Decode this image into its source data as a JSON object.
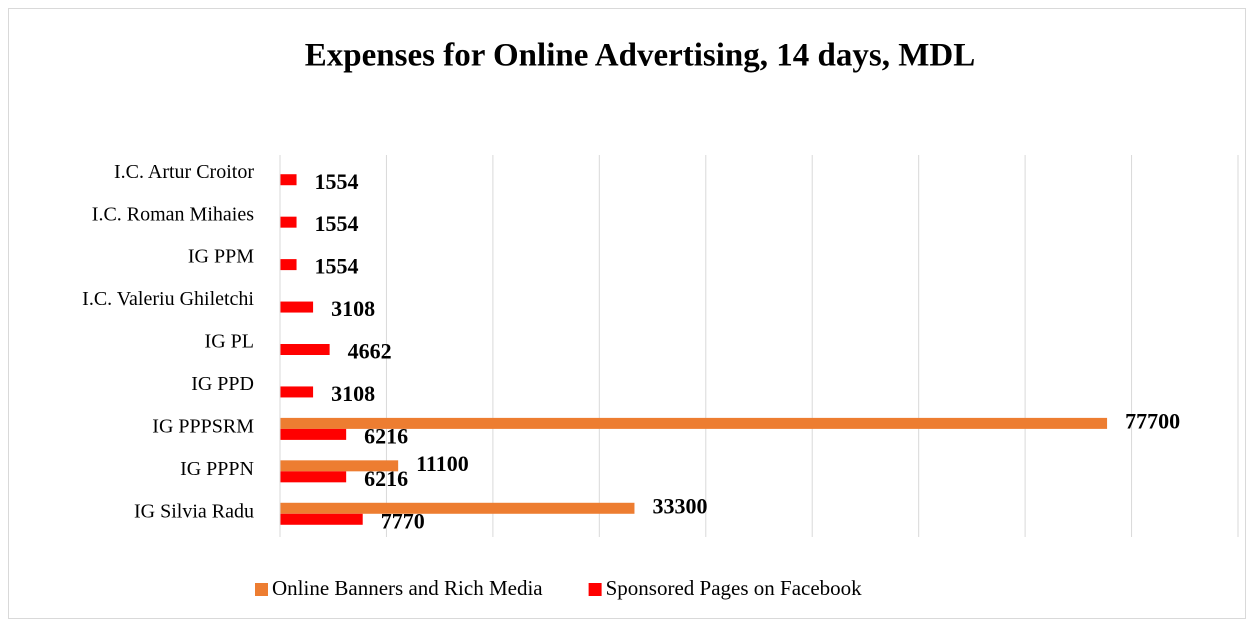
{
  "chart_data": {
    "type": "hbar",
    "title": "Expenses for Online Advertising, 14 days, MDL",
    "categories": [
      "I.C. Artur Croitor",
      "I.C. Roman Mihaies",
      "IG  PPM",
      "I.C. Valeriu Ghiletchi",
      "IG  PL",
      "IG PPD",
      "IG PPPSRM",
      "IG PPPN",
      "IG Silvia Radu"
    ],
    "series": [
      {
        "name": "Online Banners and Rich Media",
        "color": "#ed7d31",
        "values": [
          null,
          null,
          null,
          null,
          null,
          null,
          77700,
          11100,
          33300
        ]
      },
      {
        "name": "Sponsored Pages on Facebook",
        "color": "#ff0000",
        "values": [
          1554,
          1554,
          1554,
          3108,
          4662,
          3108,
          6216,
          6216,
          7770
        ]
      }
    ],
    "xlim": [
      0,
      90000
    ],
    "xticks": [
      0,
      10000,
      20000,
      30000,
      40000,
      50000,
      60000,
      70000,
      80000,
      90000
    ],
    "grid": true,
    "legend": "bottom"
  }
}
